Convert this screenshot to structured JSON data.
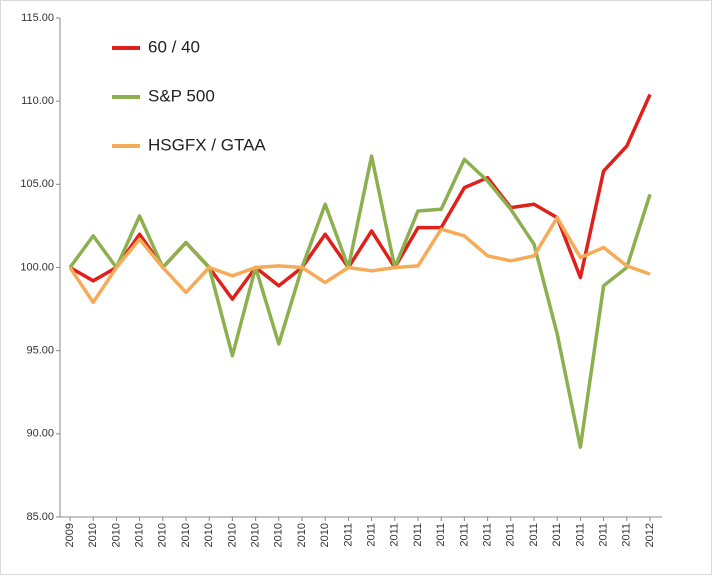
{
  "chart_data": {
    "type": "line",
    "categories": [
      "2009",
      "2010",
      "2010",
      "2010",
      "2010",
      "2010",
      "2010",
      "2010",
      "2010",
      "2010",
      "2010",
      "2010",
      "2011",
      "2011",
      "2011",
      "2011",
      "2011",
      "2011",
      "2011",
      "2011",
      "2011",
      "2011",
      "2011",
      "2011",
      "2011",
      "2012"
    ],
    "series": [
      {
        "name": "60 / 40",
        "color": "#e0201b",
        "values": [
          100,
          99.2,
          100,
          102,
          100,
          101.5,
          100,
          98.1,
          100,
          98.9,
          100,
          102,
          100,
          102.2,
          100,
          102.4,
          102.4,
          104.8,
          105.4,
          103.6,
          103.8,
          103,
          99.4,
          105.8,
          107.3,
          110.4
        ]
      },
      {
        "name": "S&P 500",
        "color": "#8db04f",
        "values": [
          100,
          101.9,
          100,
          103.1,
          100,
          101.5,
          100,
          94.7,
          100,
          95.4,
          100,
          103.8,
          100,
          106.7,
          100,
          103.4,
          103.5,
          106.5,
          105.2,
          103.5,
          101.4,
          96,
          89.2,
          98.9,
          100,
          104.4
        ]
      },
      {
        "name": "HSGFX / GTAA",
        "color": "#f6ab58",
        "values": [
          100,
          97.9,
          100,
          101.7,
          100,
          98.5,
          100,
          99.5,
          100,
          100.1,
          100,
          99.1,
          100,
          99.8,
          100,
          100.1,
          102.3,
          101.9,
          100.7,
          100.4,
          100.7,
          103,
          100.6,
          101.2,
          100.1,
          99.6
        ]
      }
    ],
    "ylim": [
      85,
      115
    ],
    "yticks": [
      {
        "value": 85,
        "label": "85.00"
      },
      {
        "value": 90,
        "label": "90.00"
      },
      {
        "value": 95,
        "label": "95.00"
      },
      {
        "value": 100,
        "label": "100.00"
      },
      {
        "value": 105,
        "label": "105.00"
      },
      {
        "value": 110,
        "label": "110.00"
      },
      {
        "value": 115,
        "label": "115.00"
      }
    ],
    "legend": "upper left"
  }
}
